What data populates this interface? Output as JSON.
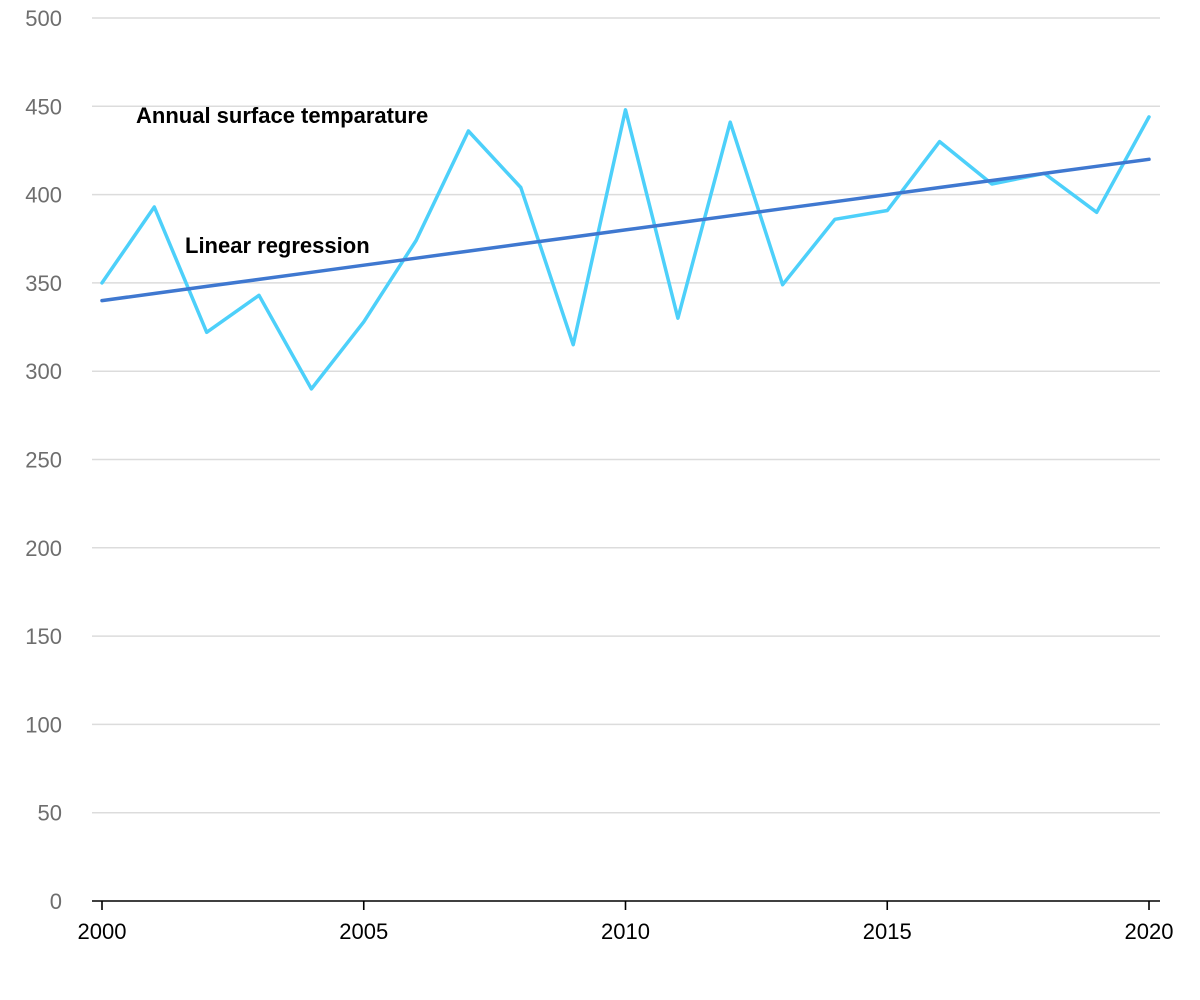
{
  "chart_data": {
    "type": "line",
    "title": "",
    "xlabel": "",
    "ylabel": "",
    "x": [
      2000,
      2001,
      2002,
      2003,
      2004,
      2005,
      2006,
      2007,
      2008,
      2009,
      2010,
      2011,
      2012,
      2013,
      2014,
      2015,
      2016,
      2017,
      2018,
      2019,
      2020
    ],
    "xlim": [
      2000,
      2020
    ],
    "ylim": [
      0,
      500
    ],
    "x_ticks": [
      "2000",
      "2005",
      "2010",
      "2015",
      "2020"
    ],
    "y_ticks": [
      "0",
      "50",
      "100",
      "150",
      "200",
      "250",
      "300",
      "350",
      "400",
      "450",
      "500"
    ],
    "grid": "horizontal",
    "legend": "none",
    "series": [
      {
        "name": "Annual surface temparature",
        "color": "#4dd0fa",
        "values": [
          350,
          393,
          322,
          343,
          290,
          328,
          374,
          436,
          404,
          315,
          448,
          330,
          441,
          349,
          386,
          391,
          430,
          406,
          412,
          390,
          444
        ]
      },
      {
        "name": "Linear regression",
        "color": "#3f78d0",
        "values": [
          340,
          344,
          348,
          352,
          356,
          360,
          364,
          368,
          372,
          376,
          380,
          384,
          388,
          392,
          396,
          400,
          404,
          408,
          412,
          416,
          420
        ]
      }
    ]
  }
}
